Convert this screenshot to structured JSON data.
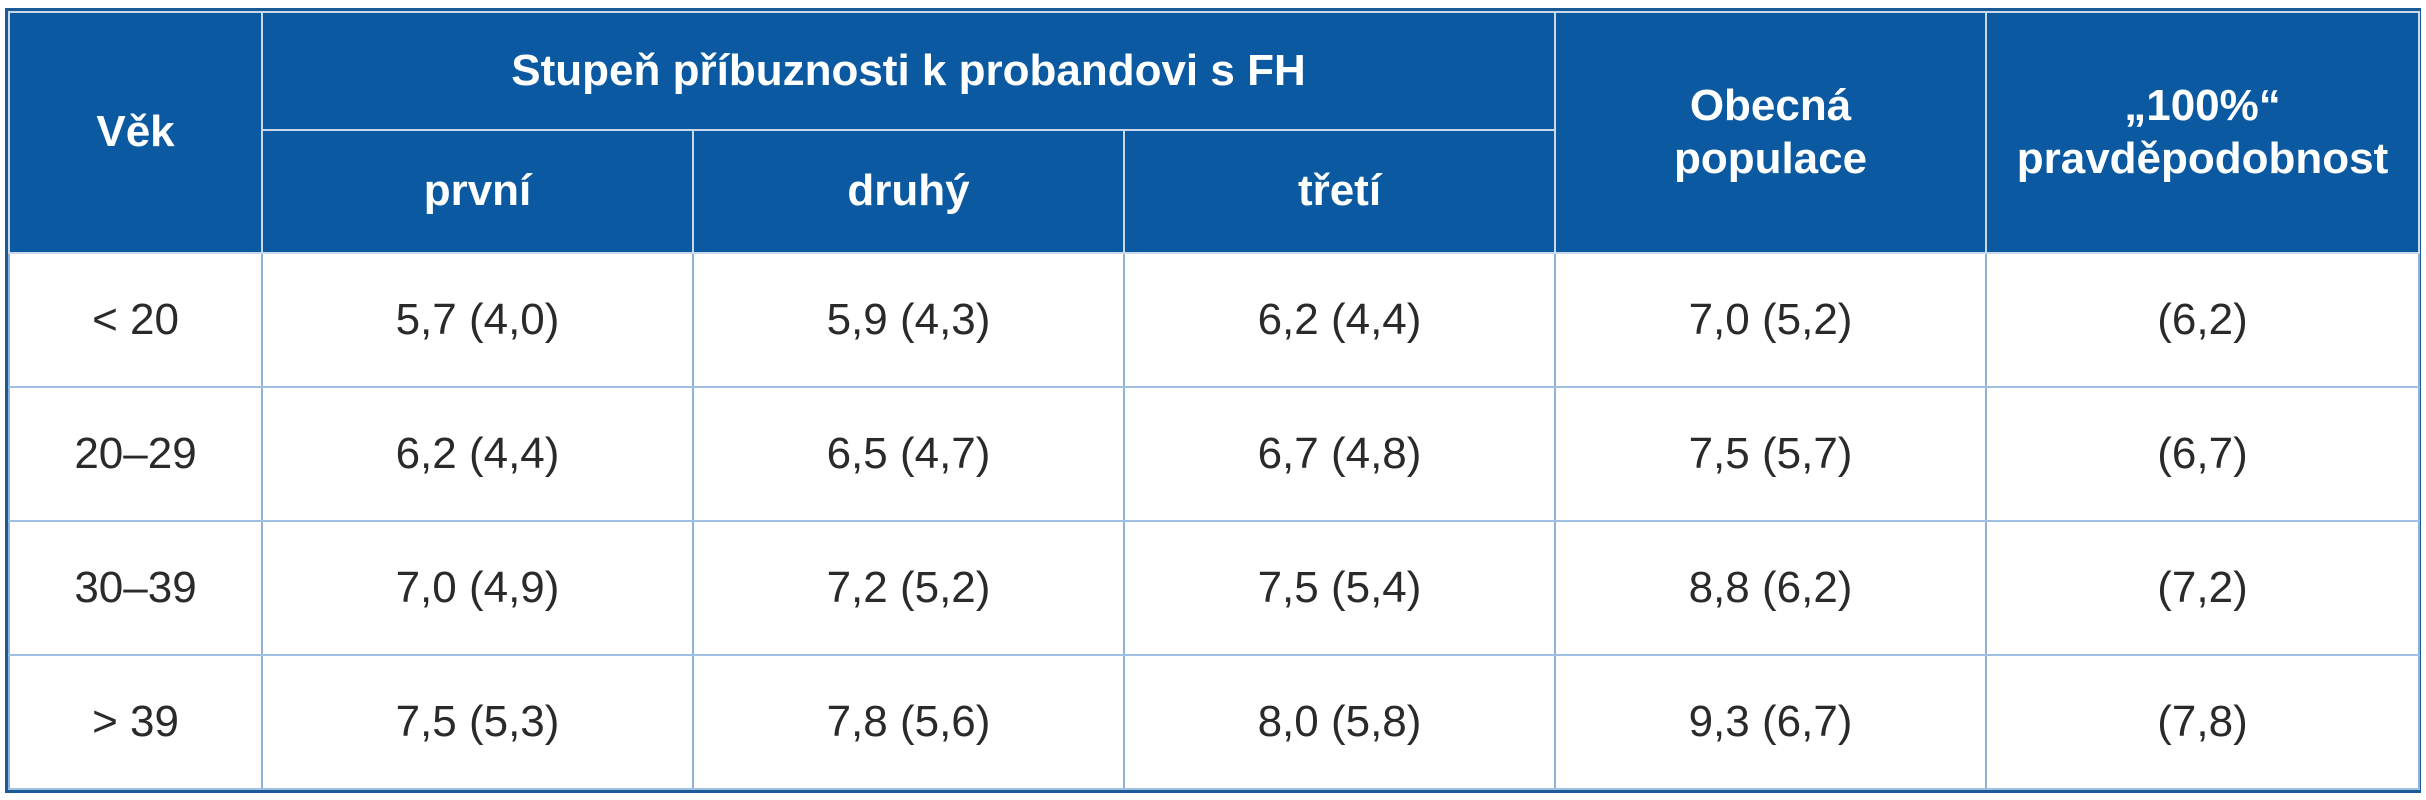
{
  "table": {
    "headers": {
      "age": "Věk",
      "group": "Stupeň příbuznosti k probandovi s FH",
      "sub": [
        "první",
        "druhý",
        "třetí"
      ],
      "general_line1": "Obecná",
      "general_line2": "populace",
      "hundred_line1": "„100%“",
      "hundred_line2": "pravděpodobnost"
    },
    "rows": [
      [
        "< 20",
        "5,7 (4,0)",
        "5,9 (4,3)",
        "6,2 (4,4)",
        "7,0 (5,2)",
        "(6,2)"
      ],
      [
        "20–29",
        "6,2 (4,4)",
        "6,5 (4,7)",
        "6,7 (4,8)",
        "7,5 (5,7)",
        "(6,7)"
      ],
      [
        "30–39",
        "7,0 (4,9)",
        "7,2 (5,2)",
        "7,5 (5,4)",
        "8,8 (6,2)",
        "(7,2)"
      ],
      [
        "> 39",
        "7,5 (5,3)",
        "7,8 (5,6)",
        "8,0 (5,8)",
        "9,3 (6,7)",
        "(7,8)"
      ]
    ]
  }
}
